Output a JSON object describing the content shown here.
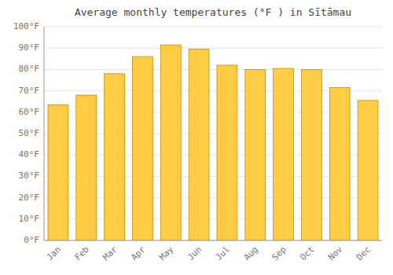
{
  "chart_data": {
    "type": "bar",
    "title": "Average monthly temperatures (°F ) in Sītāmau",
    "categories": [
      "Jan",
      "Feb",
      "Mar",
      "Apr",
      "May",
      "Jun",
      "Jul",
      "Aug",
      "Sep",
      "Oct",
      "Nov",
      "Dec"
    ],
    "values": [
      63.5,
      68,
      78,
      86,
      91.5,
      89.5,
      82,
      80,
      80.5,
      80,
      71.5,
      65.5
    ],
    "color": "#FFCC44",
    "ylim": [
      0,
      100
    ],
    "yticks": [
      {
        "value": 0,
        "label": "0°F"
      },
      {
        "value": 10,
        "label": "10°F"
      },
      {
        "value": 20,
        "label": "20°F"
      },
      {
        "value": 30,
        "label": "30°F"
      },
      {
        "value": 40,
        "label": "40°F"
      },
      {
        "value": 50,
        "label": "50°F"
      },
      {
        "value": 60,
        "label": "60°F"
      },
      {
        "value": 70,
        "label": "70°F"
      },
      {
        "value": 80,
        "label": "80°F"
      },
      {
        "value": 90,
        "label": "90°F"
      },
      {
        "value": 100,
        "label": "100°F"
      }
    ],
    "grid": true
  }
}
